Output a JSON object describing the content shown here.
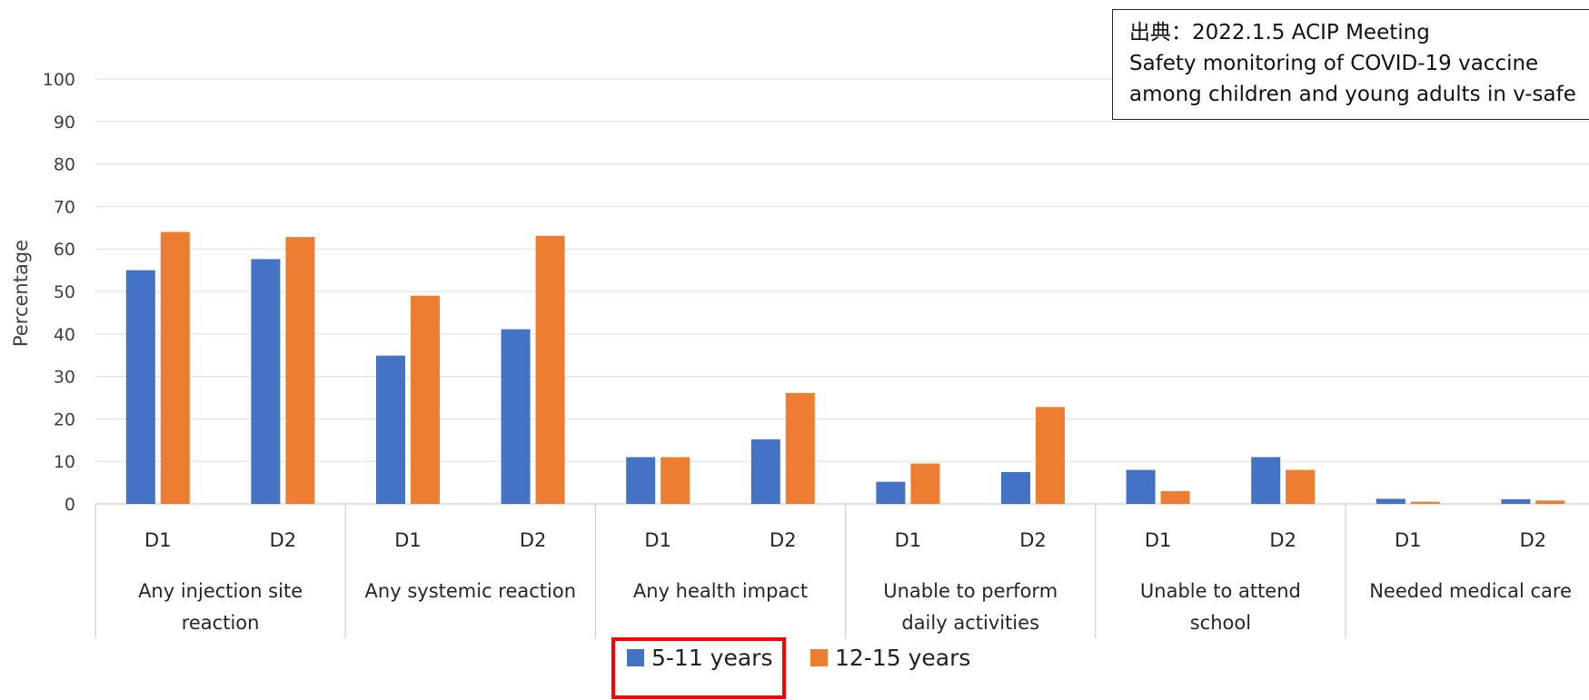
{
  "source": {
    "lines": [
      "出典：2022.1.5 ACIP Meeting",
      "Safety monitoring of COVID-19 vaccine",
      "among children and young adults in v-safe"
    ]
  },
  "colors": {
    "series_5_11": "#4472C4",
    "series_12_15": "#ED7D31",
    "highlight": "#FF0000"
  },
  "chart_data": {
    "type": "bar",
    "ylabel": "Percentage",
    "ylim": [
      0,
      100
    ],
    "yticks": [
      0,
      10,
      20,
      30,
      40,
      50,
      60,
      70,
      80,
      90,
      100
    ],
    "grid": true,
    "legend_position": "bottom",
    "groups": [
      {
        "label": "Any injection site reaction",
        "label_lines": [
          "Any injection site",
          "reaction"
        ],
        "doses": [
          "D1",
          "D2"
        ]
      },
      {
        "label": "Any systemic reaction",
        "label_lines": [
          "Any systemic reaction"
        ],
        "doses": [
          "D1",
          "D2"
        ]
      },
      {
        "label": "Any health impact",
        "label_lines": [
          "Any health impact"
        ],
        "doses": [
          "D1",
          "D2"
        ]
      },
      {
        "label": "Unable to perform daily activities",
        "label_lines": [
          "Unable to perform",
          "daily activities"
        ],
        "doses": [
          "D1",
          "D2"
        ]
      },
      {
        "label": "Unable to attend school",
        "label_lines": [
          "Unable to attend",
          "school"
        ],
        "doses": [
          "D1",
          "D2"
        ]
      },
      {
        "label": "Needed medical care",
        "label_lines": [
          "Needed medical care"
        ],
        "doses": [
          "D1",
          "D2"
        ]
      }
    ],
    "series": [
      {
        "name": "5-11 years",
        "color": "#4472C4",
        "values": [
          55,
          57.6,
          34.9,
          41.1,
          11,
          15.2,
          5.2,
          7.5,
          8,
          11,
          1.2,
          1.1
        ]
      },
      {
        "name": "12-15 years",
        "color": "#ED7D31",
        "values": [
          64,
          62.8,
          49,
          63.1,
          11,
          26.1,
          9.5,
          22.8,
          3,
          8,
          0.5,
          0.8
        ]
      }
    ]
  }
}
